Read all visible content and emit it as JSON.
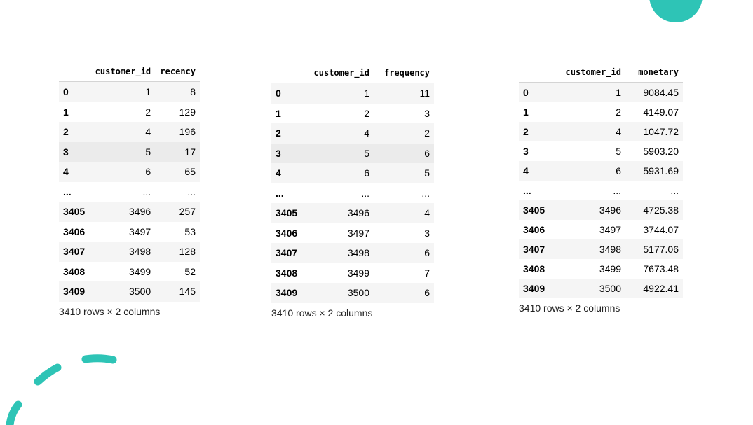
{
  "tables": [
    {
      "index_header": "",
      "columns": [
        "customer_id",
        "recency"
      ],
      "rows": [
        {
          "index": "0",
          "values": [
            "1",
            "8"
          ]
        },
        {
          "index": "1",
          "values": [
            "2",
            "129"
          ]
        },
        {
          "index": "2",
          "values": [
            "4",
            "196"
          ]
        },
        {
          "index": "3",
          "values": [
            "5",
            "17"
          ]
        },
        {
          "index": "4",
          "values": [
            "6",
            "65"
          ]
        },
        {
          "index": "...",
          "values": [
            "...",
            "..."
          ]
        },
        {
          "index": "3405",
          "values": [
            "3496",
            "257"
          ]
        },
        {
          "index": "3406",
          "values": [
            "3497",
            "53"
          ]
        },
        {
          "index": "3407",
          "values": [
            "3498",
            "128"
          ]
        },
        {
          "index": "3408",
          "values": [
            "3499",
            "52"
          ]
        },
        {
          "index": "3409",
          "values": [
            "3500",
            "145"
          ]
        }
      ],
      "shape_text": "3410 rows × 2 columns"
    },
    {
      "index_header": "",
      "columns": [
        "customer_id",
        "frequency"
      ],
      "rows": [
        {
          "index": "0",
          "values": [
            "1",
            "11"
          ]
        },
        {
          "index": "1",
          "values": [
            "2",
            "3"
          ]
        },
        {
          "index": "2",
          "values": [
            "4",
            "2"
          ]
        },
        {
          "index": "3",
          "values": [
            "5",
            "6"
          ]
        },
        {
          "index": "4",
          "values": [
            "6",
            "5"
          ]
        },
        {
          "index": "...",
          "values": [
            "...",
            "..."
          ]
        },
        {
          "index": "3405",
          "values": [
            "3496",
            "4"
          ]
        },
        {
          "index": "3406",
          "values": [
            "3497",
            "3"
          ]
        },
        {
          "index": "3407",
          "values": [
            "3498",
            "6"
          ]
        },
        {
          "index": "3408",
          "values": [
            "3499",
            "7"
          ]
        },
        {
          "index": "3409",
          "values": [
            "3500",
            "6"
          ]
        }
      ],
      "shape_text": "3410 rows × 2 columns"
    },
    {
      "index_header": "",
      "columns": [
        "customer_id",
        "monetary"
      ],
      "rows": [
        {
          "index": "0",
          "values": [
            "1",
            "9084.45"
          ]
        },
        {
          "index": "1",
          "values": [
            "2",
            "4149.07"
          ]
        },
        {
          "index": "2",
          "values": [
            "4",
            "1047.72"
          ]
        },
        {
          "index": "3",
          "values": [
            "5",
            "5903.20"
          ]
        },
        {
          "index": "4",
          "values": [
            "6",
            "5931.69"
          ]
        },
        {
          "index": "...",
          "values": [
            "...",
            "..."
          ]
        },
        {
          "index": "3405",
          "values": [
            "3496",
            "4725.38"
          ]
        },
        {
          "index": "3406",
          "values": [
            "3497",
            "3744.07"
          ]
        },
        {
          "index": "3407",
          "values": [
            "3498",
            "5177.06"
          ]
        },
        {
          "index": "3408",
          "values": [
            "3499",
            "7673.48"
          ]
        },
        {
          "index": "3409",
          "values": [
            "3500",
            "4922.41"
          ]
        }
      ],
      "shape_text": "3410 rows × 2 columns"
    }
  ],
  "colors": {
    "accent": "#2ec4b6",
    "row_stripe": "#f5f5f5",
    "row_hover": "#ebebeb",
    "header_border": "#d4d4d4"
  }
}
